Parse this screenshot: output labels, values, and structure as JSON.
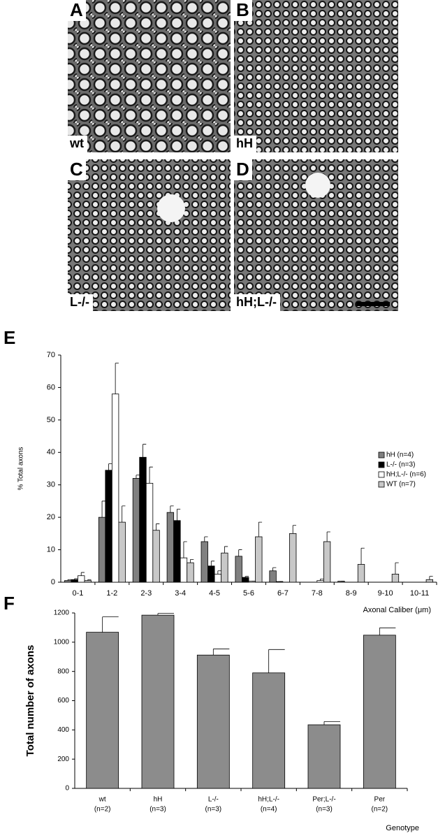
{
  "panels": [
    {
      "letter": "A",
      "label": "wt"
    },
    {
      "letter": "B",
      "label": "hH"
    },
    {
      "letter": "C",
      "label": "L-/-"
    },
    {
      "letter": "D",
      "label": "hH;L-/-"
    }
  ],
  "chart_data": [
    {
      "type": "grouped_bar",
      "panel_letter": "E",
      "ylabel": "% Total axons",
      "xlabel": "Axonal Caliber (μm)",
      "categories": [
        "0-1",
        "1-2",
        "2-3",
        "3-4",
        "4-5",
        "5-6",
        "6-7",
        "7-8",
        "8-9",
        "9-10",
        "10-11"
      ],
      "ylim": [
        0,
        70
      ],
      "yticks": [
        0,
        10,
        20,
        30,
        40,
        50,
        60,
        70
      ],
      "legend": "right",
      "series": [
        {
          "name": "hH (n=4)",
          "color": "#808080",
          "values": [
            0.5,
            20,
            32,
            21.5,
            12.5,
            8,
            3.5,
            0,
            0.3,
            0,
            0
          ],
          "errors": [
            0.3,
            5,
            1,
            2,
            1.5,
            2,
            1,
            0,
            0,
            0,
            0
          ]
        },
        {
          "name": "L-/- (n=3)",
          "color": "#000000",
          "values": [
            0.8,
            34.5,
            38.5,
            19,
            5,
            1.5,
            0.2,
            0,
            0,
            0,
            0
          ],
          "errors": [
            0.3,
            2,
            4,
            3.5,
            1.5,
            0.3,
            0,
            0,
            0,
            0,
            0
          ]
        },
        {
          "name": "hH;L-/- (n=6)",
          "color": "#ffffff",
          "values": [
            2,
            58,
            30.5,
            7.5,
            2.5,
            0.3,
            0,
            0.5,
            0,
            0,
            0
          ],
          "errors": [
            1,
            9.5,
            5,
            5,
            1,
            0,
            0,
            0.5,
            0,
            0,
            0
          ]
        },
        {
          "name": "WT (n=7)",
          "color": "#c8c8c8",
          "values": [
            0.5,
            18.5,
            16,
            6,
            9,
            14,
            15,
            12.5,
            5.5,
            2.5,
            0.8
          ],
          "errors": [
            0.3,
            5,
            2,
            1,
            2,
            4.5,
            2.5,
            3,
            5,
            3.5,
            1
          ]
        }
      ]
    },
    {
      "type": "bar",
      "panel_letter": "F",
      "ylabel": "Total number of axons",
      "xlabel": "Genotype",
      "categories": [
        "wt",
        "hH",
        "L-/-",
        "hH;L-/-",
        "Per;L-/-",
        "Per"
      ],
      "category_notes": [
        "(n=2)",
        "(n=3)",
        "(n=3)",
        "(n=4)",
        "(n=3)",
        "(n=2)"
      ],
      "ylim": [
        0,
        1200
      ],
      "yticks": [
        0,
        200,
        400,
        600,
        800,
        1000,
        1200
      ],
      "color": "#8c8c8c",
      "values": [
        1068,
        1185,
        912,
        790,
        435,
        1048
      ],
      "errors": [
        105,
        12,
        42,
        160,
        22,
        50
      ]
    }
  ]
}
